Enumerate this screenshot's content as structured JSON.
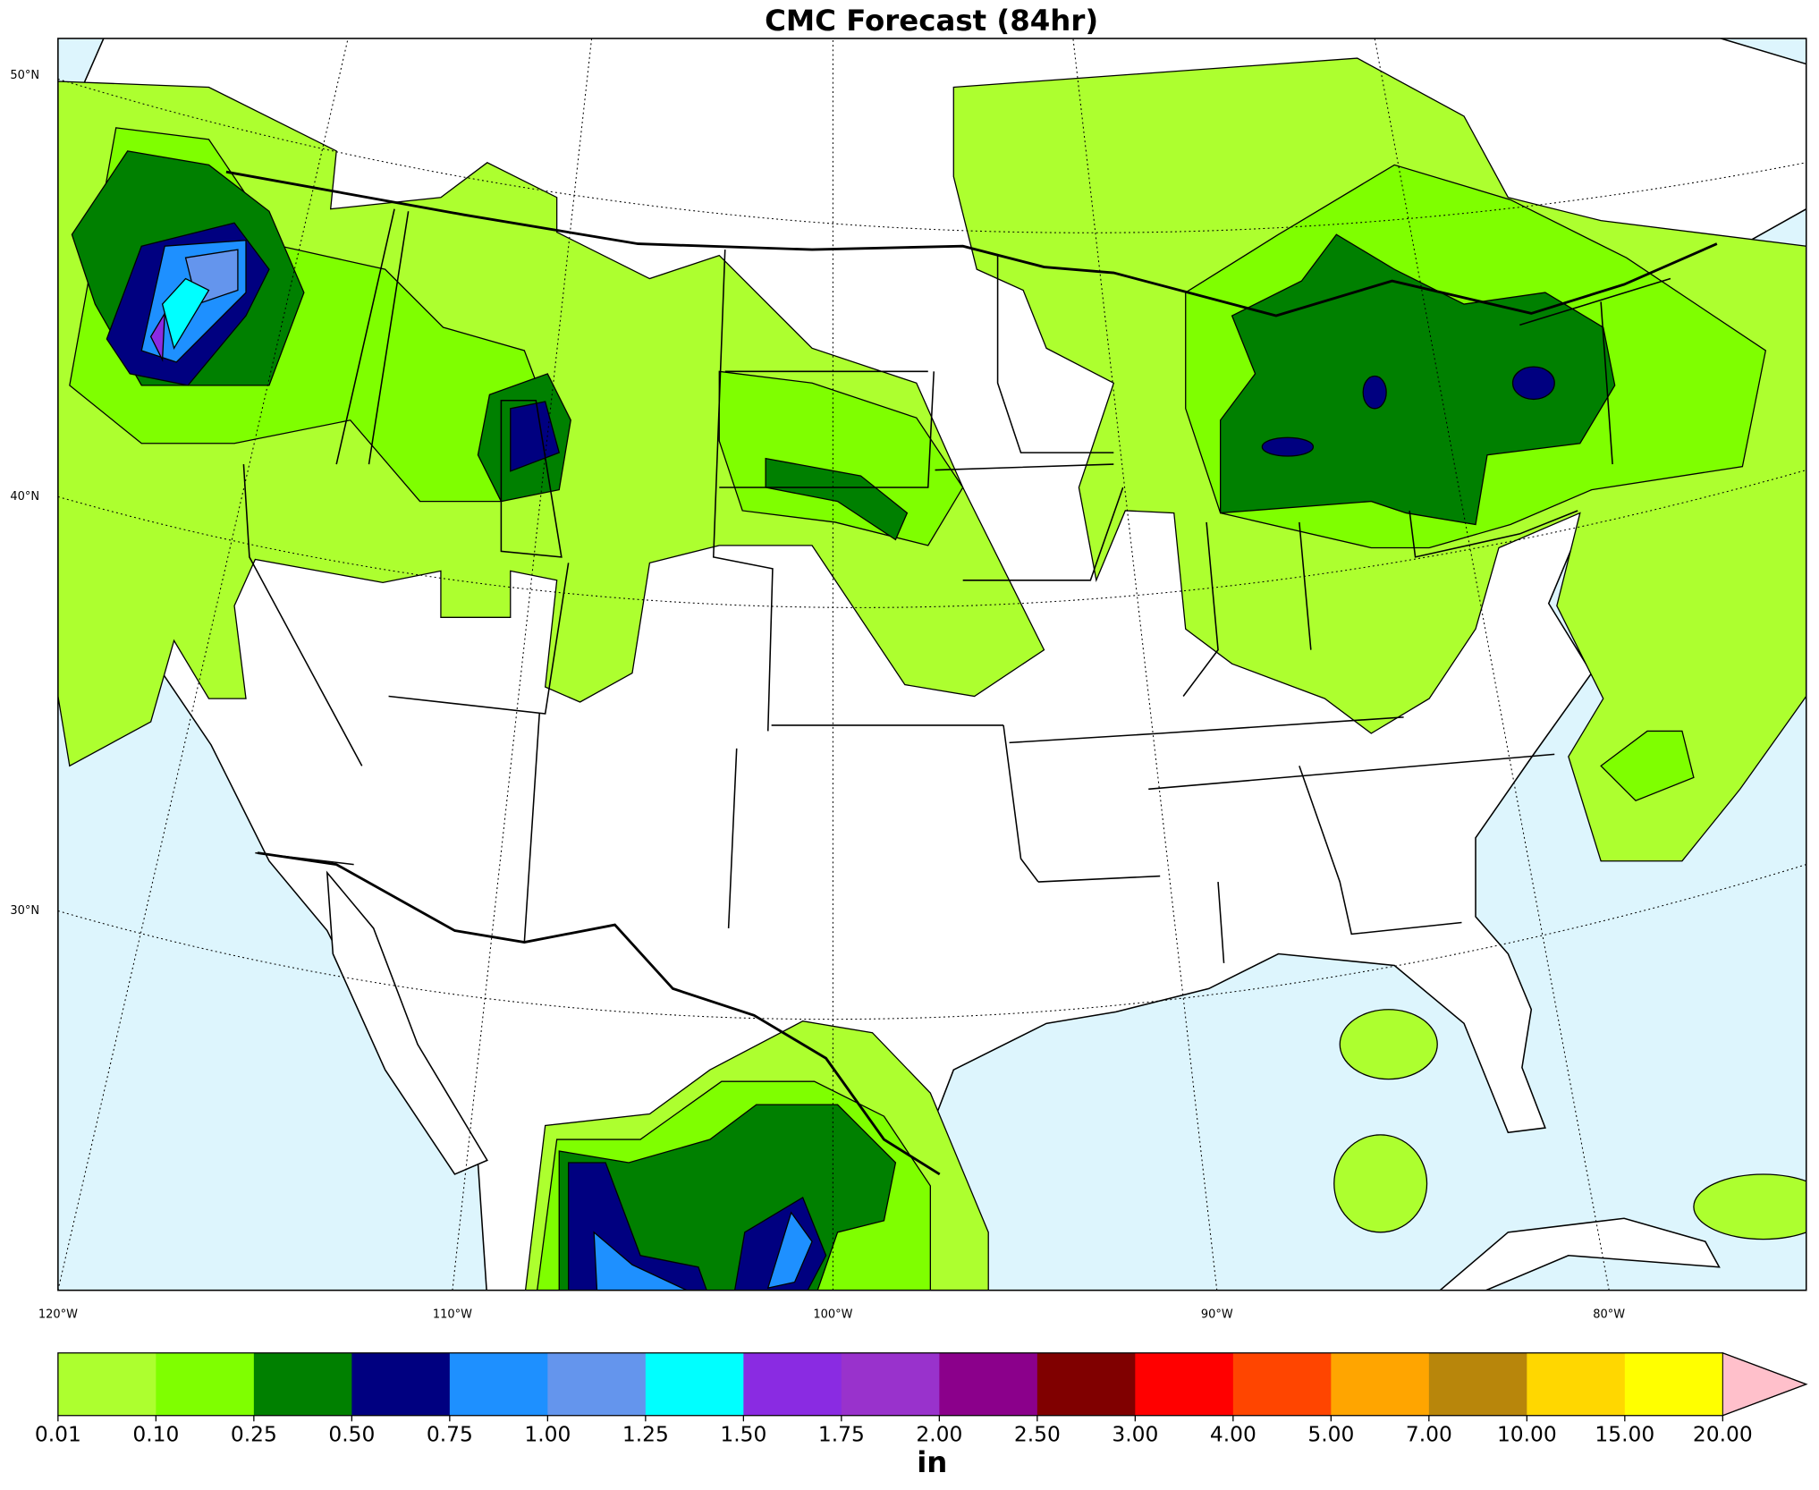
{
  "header": {
    "title": "CMC Forecast (84hr)"
  },
  "map": {
    "lat_labels": [
      "50°N",
      "40°N",
      "30°N"
    ],
    "lon_labels": [
      "120°W",
      "110°W",
      "100°W",
      "90°W",
      "80°W"
    ]
  },
  "colorbar": {
    "levels": [
      "0.01",
      "0.10",
      "0.25",
      "0.50",
      "0.75",
      "1.00",
      "1.25",
      "1.50",
      "1.75",
      "2.00",
      "2.50",
      "3.00",
      "4.00",
      "5.00",
      "7.00",
      "10.00",
      "15.00",
      "20.00"
    ],
    "colors": [
      "#adff2f",
      "#7fff00",
      "#008000",
      "#000080",
      "#1e90ff",
      "#6495ed",
      "#00ffff",
      "#8a2be2",
      "#9932cc",
      "#8b008b",
      "#800000",
      "#ff0000",
      "#ff4500",
      "#ffa500",
      "#b8860b",
      "#ffd700",
      "#ffff00"
    ],
    "extend_color": "#ffc0cb",
    "unit": "in"
  }
}
